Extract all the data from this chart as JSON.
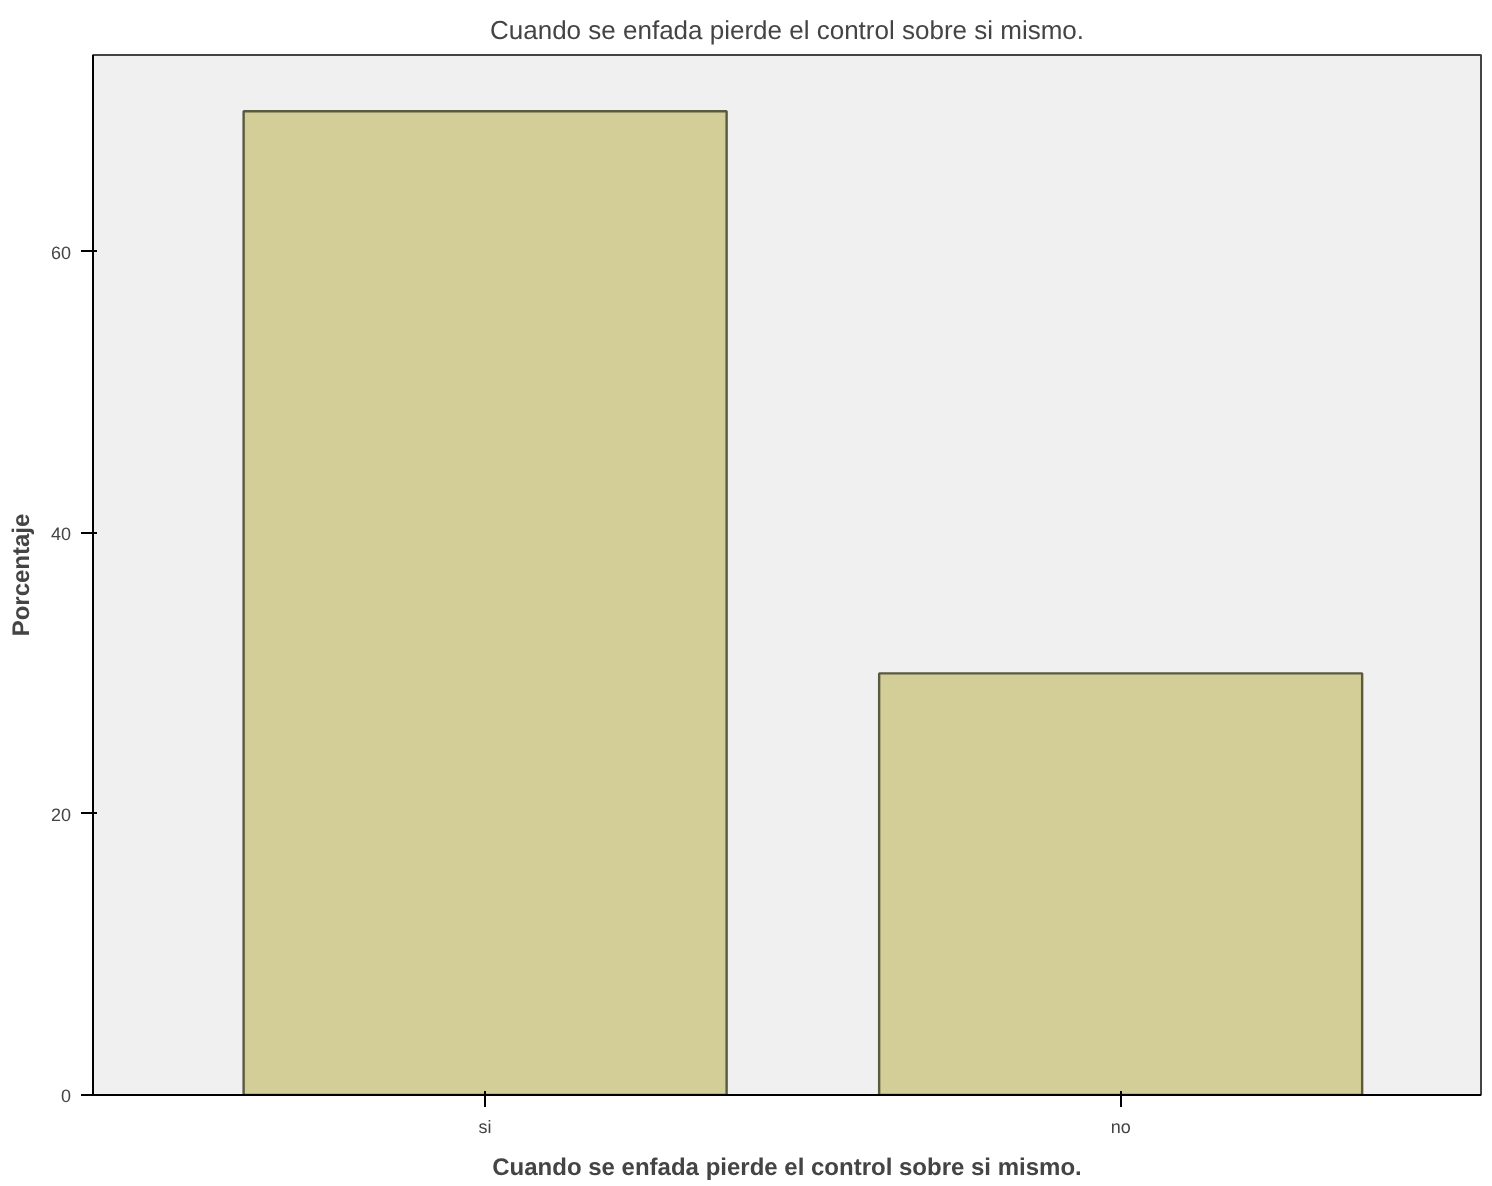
{
  "chart_data": {
    "type": "bar",
    "title": "Cuando se enfada pierde el control sobre si mismo.",
    "xlabel": "Cuando se enfada pierde el control sobre si mismo.",
    "ylabel": "Porcentaje",
    "categories": [
      "si",
      "no"
    ],
    "values": [
      70,
      30
    ],
    "color": "#d3ce97",
    "ylim": [
      0,
      74
    ],
    "yticks": [
      0,
      20,
      40,
      60
    ],
    "grid": false
  }
}
